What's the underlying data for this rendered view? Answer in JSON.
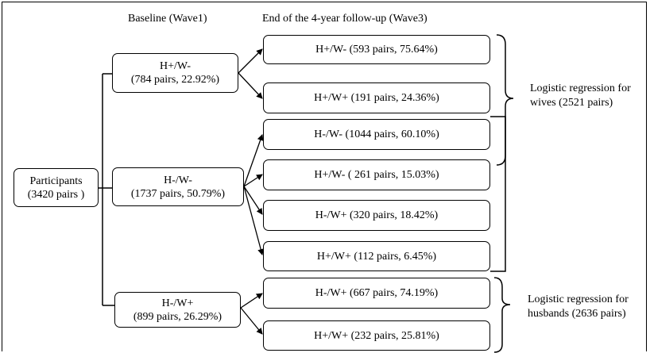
{
  "headers": {
    "baseline": "Baseline (Wave1)",
    "followup": "End of the 4-year follow-up (Wave3)"
  },
  "root": {
    "line1": "Participants",
    "line2": "(3420 pairs )"
  },
  "wave1": {
    "hpwm": {
      "line1": "H+/W-",
      "line2": "(784 pairs, 22.92%)"
    },
    "hmwm": {
      "line1": "H-/W-",
      "line2": "(1737 pairs, 50.79%)"
    },
    "hmwp": {
      "line1": "H-/W+",
      "line2": "(899 pairs, 26.29%)"
    }
  },
  "wave3": [
    {
      "label": "H+/W- (593 pairs, 75.64%)"
    },
    {
      "label": "H+/W+ (191 pairs, 24.36%)"
    },
    {
      "label": "H-/W-  (1044 pairs, 60.10%)"
    },
    {
      "label": "H+/W- ( 261 pairs, 15.03%)"
    },
    {
      "label": "H-/W+ (320 pairs, 18.42%)"
    },
    {
      "label": "H+/W+  (112 pairs, 6.45%)"
    },
    {
      "label": "H-/W+ (667 pairs, 74.19%)"
    },
    {
      "label": "H+/W+ (232 pairs, 25.81%)"
    }
  ],
  "notes": {
    "wives_line1": "Logistic regression for",
    "wives_line2": "wives (2521 pairs)",
    "husbands_line1": "Logistic regression for",
    "husbands_line2": "husbands (2636 pairs)"
  }
}
